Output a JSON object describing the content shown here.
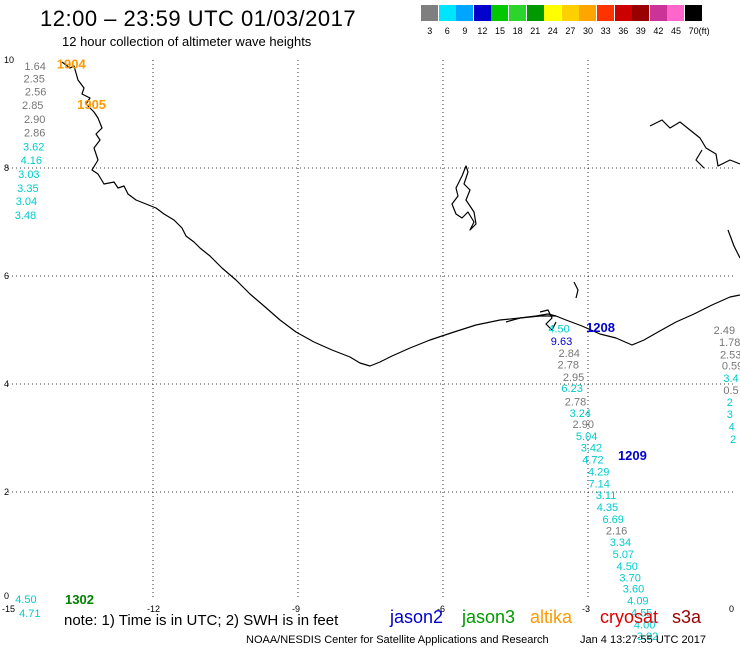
{
  "header": {
    "title": "12:00 – 23:59 UTC 01/03/2017",
    "subtitle": "12 hour collection of altimeter wave heights"
  },
  "color_scale": {
    "unit": "(ft)",
    "bins": [
      {
        "label": "3",
        "color": "#7f7f7f"
      },
      {
        "label": "6",
        "color": "#00e5ff"
      },
      {
        "label": "9",
        "color": "#00a5ff"
      },
      {
        "label": "12",
        "color": "#0000cc"
      },
      {
        "label": "15",
        "color": "#00c800"
      },
      {
        "label": "18",
        "color": "#2bd52b"
      },
      {
        "label": "21",
        "color": "#009900"
      },
      {
        "label": "24",
        "color": "#ffff00"
      },
      {
        "label": "27",
        "color": "#ffd000"
      },
      {
        "label": "30",
        "color": "#ffa500"
      },
      {
        "label": "33",
        "color": "#ff3300"
      },
      {
        "label": "36",
        "color": "#cc0000"
      },
      {
        "label": "39",
        "color": "#990000"
      },
      {
        "label": "42",
        "color": "#cc3399"
      },
      {
        "label": "45",
        "color": "#ff66cc"
      },
      {
        "label": "70",
        "color": "#000000"
      }
    ]
  },
  "map": {
    "x_ticks": [
      "-15",
      "-12",
      "-9",
      "-6",
      "-3",
      "0"
    ],
    "y_ticks": [
      "0",
      "2",
      "4",
      "6",
      "8",
      "10"
    ],
    "time_labels": [
      {
        "text": "1904",
        "color": "#ff9900",
        "lon": -13.99,
        "lat": 9.92
      },
      {
        "text": "1905",
        "color": "#ff9900",
        "lon": -13.57,
        "lat": 9.17
      },
      {
        "text": "1208",
        "color": "#0000cc",
        "lon": -3.04,
        "lat": 5.04
      },
      {
        "text": "1209",
        "color": "#0000cc",
        "lon": -2.38,
        "lat": 2.67
      },
      {
        "text": "1302",
        "color": "#008000",
        "lon": -13.82,
        "lat": 0.0
      }
    ],
    "wave_points": [
      {
        "v": "1.64",
        "c": "#777777",
        "lon": -14.66,
        "lat": 9.89
      },
      {
        "v": "2.35",
        "c": "#777777",
        "lon": -14.68,
        "lat": 9.66
      },
      {
        "v": "2.56",
        "c": "#777777",
        "lon": -14.65,
        "lat": 9.42
      },
      {
        "v": "2.85",
        "c": "#777777",
        "lon": -14.71,
        "lat": 9.17
      },
      {
        "v": "2.90",
        "c": "#777777",
        "lon": -14.67,
        "lat": 8.91
      },
      {
        "v": "2.86",
        "c": "#777777",
        "lon": -14.67,
        "lat": 8.66
      },
      {
        "v": "3.62",
        "c": "#00cccc",
        "lon": -14.69,
        "lat": 8.4
      },
      {
        "v": "4.16",
        "c": "#00cccc",
        "lon": -14.74,
        "lat": 8.15
      },
      {
        "v": "3.03",
        "c": "#00cccc",
        "lon": -14.79,
        "lat": 7.89
      },
      {
        "v": "3.35",
        "c": "#00cccc",
        "lon": -14.81,
        "lat": 7.63
      },
      {
        "v": "3.04",
        "c": "#00cccc",
        "lon": -14.84,
        "lat": 7.39
      },
      {
        "v": "3.48",
        "c": "#00cccc",
        "lon": -14.86,
        "lat": 7.13
      },
      {
        "v": "4.50",
        "c": "#00cccc",
        "lon": -14.85,
        "lat": 0.02
      },
      {
        "v": "4.71",
        "c": "#00cccc",
        "lon": -14.77,
        "lat": -0.24
      },
      {
        "v": "4.50",
        "c": "#00cccc",
        "lon": -3.82,
        "lat": 5.03
      },
      {
        "v": "9.63",
        "c": "#0000cc",
        "lon": -3.77,
        "lat": 4.8
      },
      {
        "v": "2.84",
        "c": "#777777",
        "lon": -3.61,
        "lat": 4.57
      },
      {
        "v": "2.78",
        "c": "#777777",
        "lon": -3.63,
        "lat": 4.36
      },
      {
        "v": "2.95",
        "c": "#777777",
        "lon": -3.52,
        "lat": 4.13
      },
      {
        "v": "6.23",
        "c": "#00cccc",
        "lon": -3.55,
        "lat": 3.93
      },
      {
        "v": "2.78",
        "c": "#777777",
        "lon": -3.48,
        "lat": 3.68
      },
      {
        "v": "3.24",
        "c": "#00cccc",
        "lon": -3.38,
        "lat": 3.46
      },
      {
        "v": "2.90",
        "c": "#777777",
        "lon": -3.32,
        "lat": 3.26
      },
      {
        "v": "5.04",
        "c": "#00cccc",
        "lon": -3.25,
        "lat": 3.04
      },
      {
        "v": "3.42",
        "c": "#00cccc",
        "lon": -3.15,
        "lat": 2.82
      },
      {
        "v": "4.72",
        "c": "#00cccc",
        "lon": -3.12,
        "lat": 2.6
      },
      {
        "v": "4.29",
        "c": "#00cccc",
        "lon": -3.0,
        "lat": 2.38
      },
      {
        "v": "7.14",
        "c": "#00cccc",
        "lon": -2.99,
        "lat": 2.16
      },
      {
        "v": "3.11",
        "c": "#00cccc",
        "lon": -2.84,
        "lat": 1.94
      },
      {
        "v": "4.35",
        "c": "#00cccc",
        "lon": -2.82,
        "lat": 1.72
      },
      {
        "v": "6.69",
        "c": "#00cccc",
        "lon": -2.7,
        "lat": 1.5
      },
      {
        "v": "2.16",
        "c": "#777777",
        "lon": -2.63,
        "lat": 1.29
      },
      {
        "v": "3.34",
        "c": "#00cccc",
        "lon": -2.55,
        "lat": 1.07
      },
      {
        "v": "5.07",
        "c": "#00cccc",
        "lon": -2.49,
        "lat": 0.85
      },
      {
        "v": "4.50",
        "c": "#00cccc",
        "lon": -2.41,
        "lat": 0.63
      },
      {
        "v": "3.70",
        "c": "#00cccc",
        "lon": -2.35,
        "lat": 0.42
      },
      {
        "v": "3.60",
        "c": "#00cccc",
        "lon": -2.28,
        "lat": 0.21
      },
      {
        "v": "4.09",
        "c": "#00cccc",
        "lon": -2.19,
        "lat": -0.01
      },
      {
        "v": "4.55",
        "c": "#00cccc",
        "lon": -2.11,
        "lat": -0.23
      },
      {
        "v": "4.00",
        "c": "#00cccc",
        "lon": -2.05,
        "lat": -0.45
      },
      {
        "v": "3.92",
        "c": "#00cccc",
        "lon": -1.99,
        "lat": -0.67
      },
      {
        "v": "2.49",
        "c": "#777777",
        "lon": -0.4,
        "lat": 5.0
      },
      {
        "v": "1.78",
        "c": "#777777",
        "lon": -0.29,
        "lat": 4.78
      },
      {
        "v": "2.53",
        "c": "#777777",
        "lon": -0.27,
        "lat": 4.55
      },
      {
        "v": "0.59",
        "c": "#777777",
        "lon": -0.23,
        "lat": 4.34
      },
      {
        "v": "3.4",
        "c": "#00cccc",
        "lon": -0.2,
        "lat": 4.11
      },
      {
        "v": "0.5",
        "c": "#777777",
        "lon": -0.2,
        "lat": 3.89
      },
      {
        "v": "2",
        "c": "#00cccc",
        "lon": -0.13,
        "lat": 3.67
      },
      {
        "v": "3",
        "c": "#00cccc",
        "lon": -0.13,
        "lat": 3.44
      },
      {
        "v": "4",
        "c": "#00cccc",
        "lon": -0.09,
        "lat": 3.21
      },
      {
        "v": "2",
        "c": "#00cccc",
        "lon": -0.06,
        "lat": 2.98
      }
    ]
  },
  "bottom": {
    "note": "note:  1) Time is in UTC;  2) SWH is in feet",
    "satellites": [
      {
        "name": "jason2",
        "color": "#0000cc"
      },
      {
        "name": "jason3",
        "color": "#009900"
      },
      {
        "name": "altika",
        "color": "#ff9900"
      },
      {
        "name": "cryosat",
        "color": "#dd0000"
      },
      {
        "name": "s3a",
        "color": "#990000"
      }
    ],
    "credit": "NOAA/NESDIS Center for Satellite Applications and Research",
    "timestamp": "Jan  4 13:27:55 UTC 2017"
  }
}
